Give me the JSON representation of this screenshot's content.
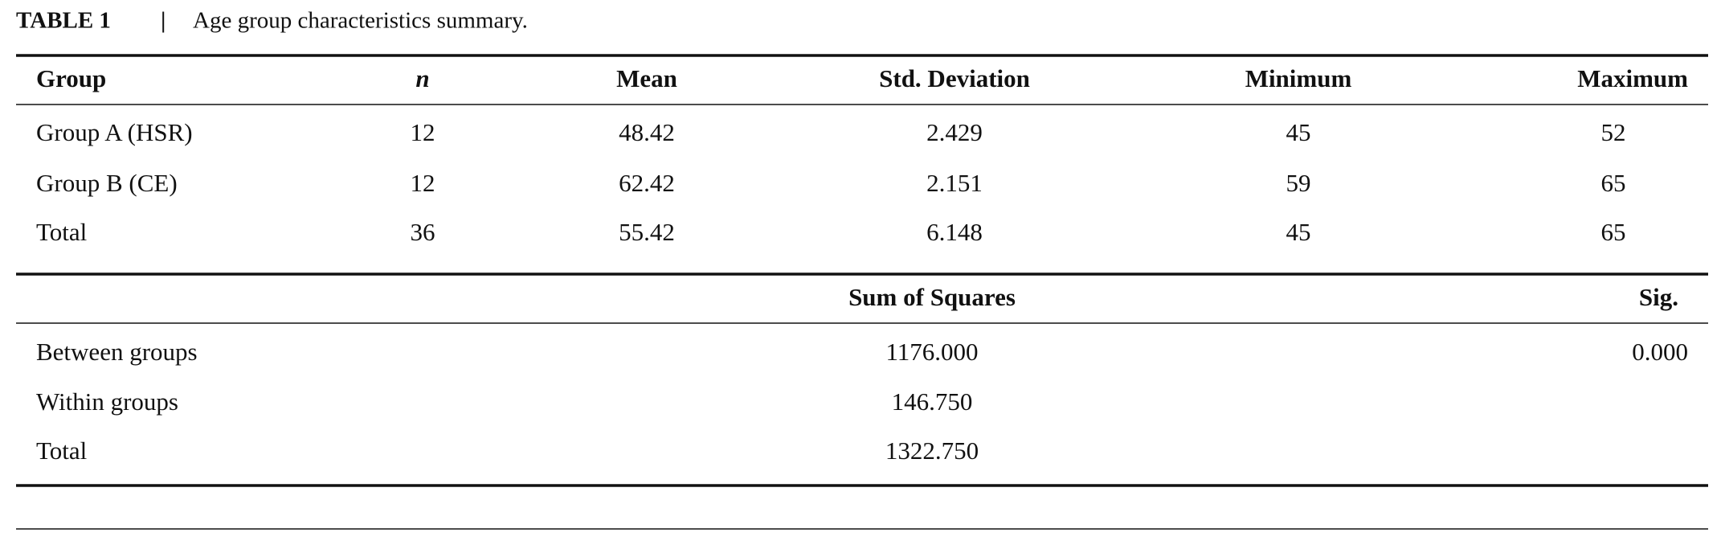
{
  "caption": {
    "label": "TABLE 1",
    "separator": "|",
    "text": "Age group characteristics summary."
  },
  "table": {
    "header": [
      "Group",
      "n",
      "Mean",
      "Std. Deviation",
      "Minimum",
      "Maximum"
    ],
    "rows": [
      [
        "Group A (HSR)",
        "12",
        "48.42",
        "2.429",
        "45",
        "52"
      ],
      [
        "Group B (CE)",
        "12",
        "62.42",
        "2.151",
        "59",
        "65"
      ],
      [
        "Total",
        "36",
        "55.42",
        "6.148",
        "45",
        "65"
      ]
    ]
  },
  "anova": {
    "header": [
      "Sum of Squares",
      "Sig."
    ],
    "rows": [
      [
        "Between groups",
        "1176.000",
        "0.000"
      ],
      [
        "Within groups",
        "146.750"
      ],
      [
        "Total",
        "1322.750"
      ]
    ]
  }
}
